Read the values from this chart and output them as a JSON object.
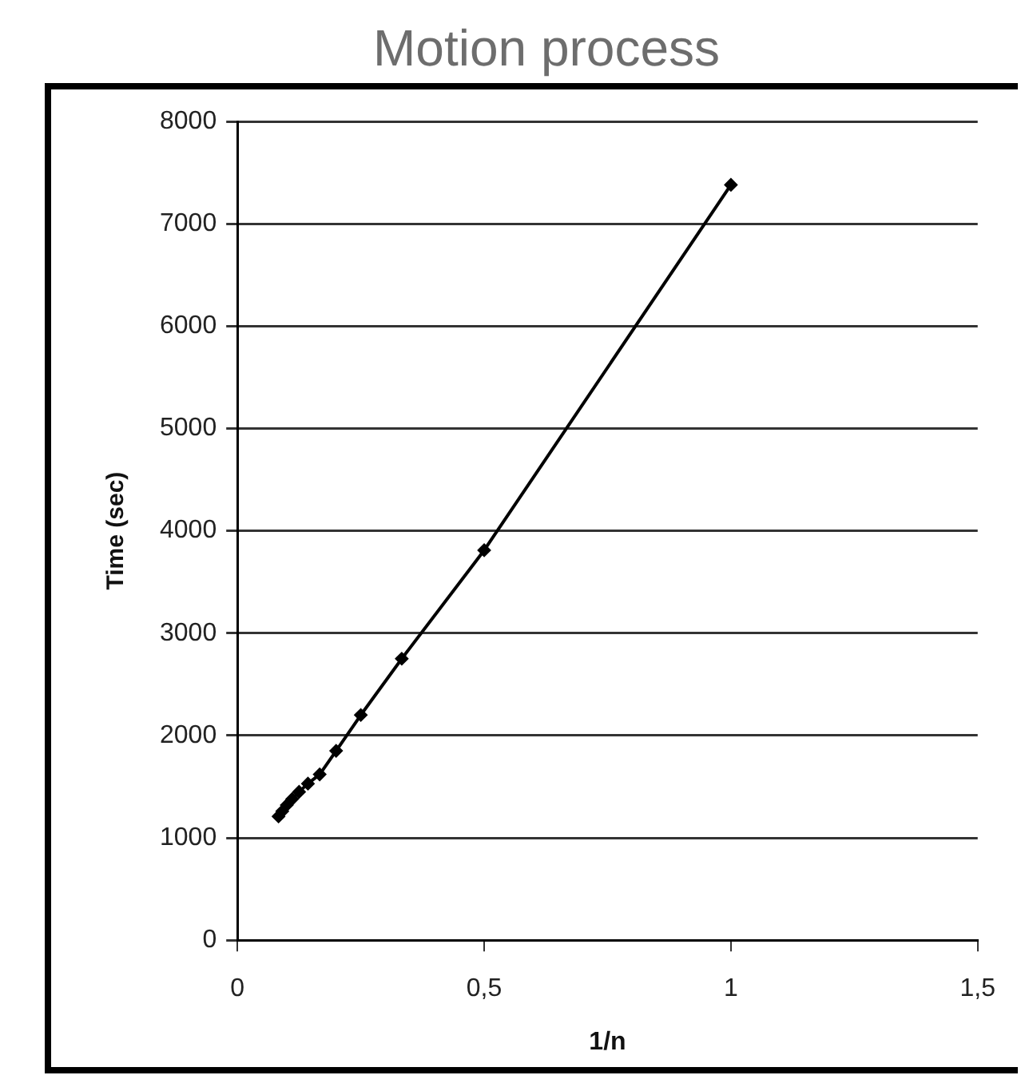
{
  "chart_data": {
    "type": "line",
    "title": "Motion process",
    "xlabel": "1/n",
    "ylabel": "Time (sec)",
    "x": [
      1,
      0.5,
      0.333,
      0.25,
      0.2,
      0.1667,
      0.1429,
      0.125,
      0.1111,
      0.1,
      0.0909,
      0.0833
    ],
    "series": [
      {
        "color": "#000000",
        "values": [
          7380,
          3810,
          2750,
          2200,
          1850,
          1620,
          1530,
          1450,
          1380,
          1320,
          1260,
          1210
        ]
      }
    ],
    "xlim": [
      0,
      1.5
    ],
    "xticks": [
      0,
      {
        "value": 0.5,
        "label": "0,5"
      },
      1,
      {
        "value": 1.5,
        "label": "1,5"
      }
    ],
    "ylim": [
      0,
      8000
    ],
    "yticks": [
      0,
      1000,
      2000,
      3000,
      4000,
      5000,
      6000,
      7000,
      8000
    ],
    "grid": "y",
    "legend": false,
    "marker": "diamond",
    "line_style": "solid"
  }
}
